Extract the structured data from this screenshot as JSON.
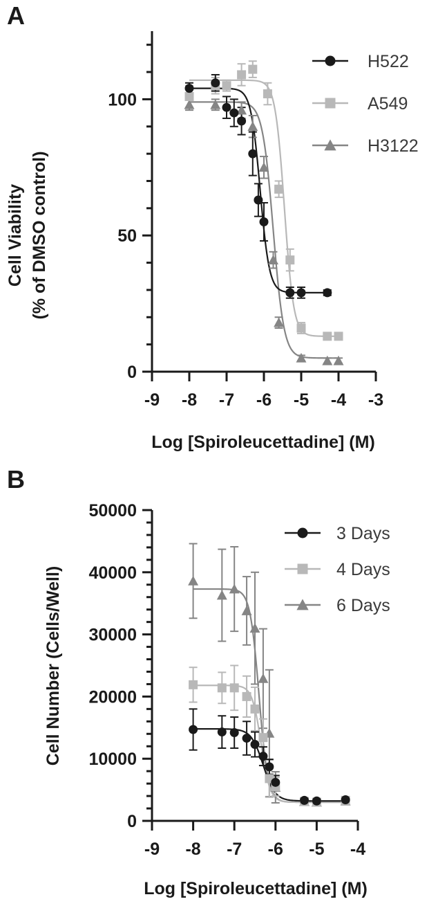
{
  "chart_data": [
    {
      "panel": "A",
      "type": "scatter",
      "xlabel": "Log [Spiroleucettadine] (M)",
      "ylabel": "Cell Viability (% of DMSO control)",
      "ylabel_lines": [
        "Cell Viability",
        "(% of DMSO control)"
      ],
      "xlim": [
        -9,
        -3
      ],
      "ylim": [
        0,
        125
      ],
      "xticks": [
        -9,
        -8,
        -7,
        -6,
        -5,
        -4,
        -3
      ],
      "yticks_labeled": [
        0,
        50,
        100
      ],
      "yminor_step": 10,
      "xtick_labels": [
        "-9",
        "-8",
        "-7",
        "-6",
        "-5",
        "-4",
        "-3"
      ],
      "ytick_labels": [
        "0",
        "50",
        "100"
      ],
      "grid": false,
      "legend_position": "top-right",
      "series": [
        {
          "name": "H522",
          "color": "#1a1a1a",
          "marker": "circle",
          "fit": {
            "top": 104,
            "bottom": 29,
            "logec50": -6.1,
            "hill": -3.5
          },
          "points": [
            {
              "x": -8.0,
              "y": 104,
              "err": 2
            },
            {
              "x": -7.3,
              "y": 106,
              "err": 3
            },
            {
              "x": -7.0,
              "y": 97,
              "err": 4
            },
            {
              "x": -6.8,
              "y": 95,
              "err": 5
            },
            {
              "x": -6.6,
              "y": 92,
              "err": 5
            },
            {
              "x": -6.3,
              "y": 80,
              "err": 8
            },
            {
              "x": -6.15,
              "y": 63,
              "err": 6
            },
            {
              "x": -6.0,
              "y": 55,
              "err": 7
            },
            {
              "x": -5.3,
              "y": 29,
              "err": 2
            },
            {
              "x": -5.0,
              "y": 29,
              "err": 2
            },
            {
              "x": -4.3,
              "y": 29,
              "err": 1
            }
          ]
        },
        {
          "name": "A549",
          "color": "#b8b8b8",
          "marker": "square",
          "fit": {
            "top": 107,
            "bottom": 13,
            "logec50": -5.45,
            "hill": -3.5
          },
          "points": [
            {
              "x": -8.0,
              "y": 101,
              "err": 4
            },
            {
              "x": -7.3,
              "y": 105,
              "err": 3
            },
            {
              "x": -7.0,
              "y": 105,
              "err": 2
            },
            {
              "x": -6.6,
              "y": 109,
              "err": 4
            },
            {
              "x": -6.3,
              "y": 111,
              "err": 3
            },
            {
              "x": -5.9,
              "y": 102,
              "err": 4
            },
            {
              "x": -5.6,
              "y": 67,
              "err": 3
            },
            {
              "x": -5.3,
              "y": 41,
              "err": 4
            },
            {
              "x": -5.0,
              "y": 16,
              "err": 2
            },
            {
              "x": -4.3,
              "y": 13,
              "err": 1
            },
            {
              "x": -4.0,
              "y": 13,
              "err": 1
            }
          ]
        },
        {
          "name": "H3122",
          "color": "#858585",
          "marker": "triangle",
          "fit": {
            "top": 99,
            "bottom": 5,
            "logec50": -5.75,
            "hill": -3.0
          },
          "points": [
            {
              "x": -8.0,
              "y": 98,
              "err": 2
            },
            {
              "x": -7.3,
              "y": 98,
              "err": 2
            },
            {
              "x": -6.6,
              "y": 96,
              "err": 3
            },
            {
              "x": -6.3,
              "y": 90,
              "err": 4
            },
            {
              "x": -6.0,
              "y": 75,
              "err": 4
            },
            {
              "x": -5.75,
              "y": 41,
              "err": 3
            },
            {
              "x": -5.6,
              "y": 18,
              "err": 2
            },
            {
              "x": -5.0,
              "y": 5,
              "err": 1
            },
            {
              "x": -4.3,
              "y": 4,
              "err": 1
            },
            {
              "x": -4.0,
              "y": 4,
              "err": 1
            }
          ]
        }
      ]
    },
    {
      "panel": "B",
      "type": "scatter",
      "xlabel": "Log [Spiroleucettadine] (M)",
      "ylabel": "Cell Number (Cells/Well)",
      "ylabel_lines": [
        "Cell Number (Cells/Well)"
      ],
      "xlim": [
        -9,
        -4
      ],
      "ylim": [
        0,
        50000
      ],
      "xticks": [
        -9,
        -8,
        -7,
        -6,
        -5,
        -4
      ],
      "yticks_labeled": [
        0,
        10000,
        20000,
        30000,
        40000,
        50000
      ],
      "yminor_step": 2000,
      "xtick_labels": [
        "-9",
        "-8",
        "-7",
        "-6",
        "-5",
        "-4"
      ],
      "ytick_labels": [
        "0",
        "10000",
        "20000",
        "30000",
        "40000",
        "50000"
      ],
      "grid": false,
      "legend_position": "top-right",
      "series": [
        {
          "name": "3 Days",
          "color": "#1a1a1a",
          "marker": "circle",
          "fit": {
            "top": 14800,
            "bottom": 3200,
            "logec50": -6.3,
            "hill": -3.0
          },
          "points": [
            {
              "x": -8.0,
              "y": 14700,
              "err": 3300
            },
            {
              "x": -7.3,
              "y": 14300,
              "err": 2600
            },
            {
              "x": -7.0,
              "y": 14200,
              "err": 2500
            },
            {
              "x": -6.7,
              "y": 13300,
              "err": 2700
            },
            {
              "x": -6.5,
              "y": 12300,
              "err": 2000
            },
            {
              "x": -6.3,
              "y": 10400,
              "err": 1500
            },
            {
              "x": -6.15,
              "y": 8700,
              "err": 1200
            },
            {
              "x": -6.0,
              "y": 6200,
              "err": 1100
            },
            {
              "x": -5.3,
              "y": 3300,
              "err": 400
            },
            {
              "x": -5.0,
              "y": 3200,
              "err": 300
            },
            {
              "x": -4.3,
              "y": 3400,
              "err": 300
            }
          ]
        },
        {
          "name": "4 Days",
          "color": "#b8b8b8",
          "marker": "square",
          "fit": {
            "top": 21800,
            "bottom": 3000,
            "logec50": -6.35,
            "hill": -4.0
          },
          "points": [
            {
              "x": -8.0,
              "y": 21900,
              "err": 2800
            },
            {
              "x": -7.3,
              "y": 21400,
              "err": 2500
            },
            {
              "x": -7.0,
              "y": 21400,
              "err": 3600
            },
            {
              "x": -6.7,
              "y": 20000,
              "err": 3300
            },
            {
              "x": -6.5,
              "y": 18000,
              "err": 3500
            },
            {
              "x": -6.3,
              "y": 13400,
              "err": 3000
            },
            {
              "x": -6.15,
              "y": 6800,
              "err": 3000
            },
            {
              "x": -6.0,
              "y": 5500,
              "err": 1500
            },
            {
              "x": -5.3,
              "y": 3100,
              "err": 300
            },
            {
              "x": -5.0,
              "y": 3000,
              "err": 300
            },
            {
              "x": -4.3,
              "y": 3300,
              "err": 300
            }
          ]
        },
        {
          "name": "6 Days",
          "color": "#858585",
          "marker": "triangle",
          "fit": {
            "top": 37300,
            "bottom": 3000,
            "logec50": -6.4,
            "hill": -4.0
          },
          "points": [
            {
              "x": -8.0,
              "y": 38600,
              "err": 6000
            },
            {
              "x": -7.3,
              "y": 36300,
              "err": 7400
            },
            {
              "x": -7.0,
              "y": 37300,
              "err": 6800
            },
            {
              "x": -6.7,
              "y": 33800,
              "err": 5500
            },
            {
              "x": -6.5,
              "y": 31000,
              "err": 9000
            },
            {
              "x": -6.3,
              "y": 22900,
              "err": 8000
            },
            {
              "x": -6.15,
              "y": 14100,
              "err": 10200
            },
            {
              "x": -6.0,
              "y": 5400,
              "err": 2500
            },
            {
              "x": -5.3,
              "y": 3100,
              "err": 300
            },
            {
              "x": -5.0,
              "y": 3000,
              "err": 300
            },
            {
              "x": -4.3,
              "y": 3200,
              "err": 300
            }
          ]
        }
      ]
    }
  ]
}
